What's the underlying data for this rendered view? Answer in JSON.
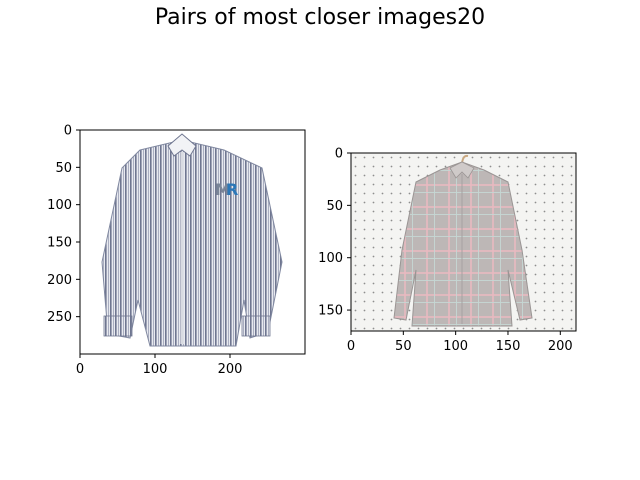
{
  "figure": {
    "title": "Pairs of most closer images20"
  },
  "colors": {
    "background": "#ffffff",
    "axis": "#000000",
    "shirt1_stripe_dark": "#6f7690",
    "shirt1_stripe_light": "#e8eaf0",
    "shirt2_base": "#bdb7b6",
    "shirt2_check": "#e8b9c0",
    "pegboard": "#f4f4f2"
  },
  "chart_data": [
    {
      "type": "image",
      "title": "",
      "xlabel": "",
      "ylabel": "",
      "xlim": [
        0,
        300
      ],
      "ylim": [
        300,
        0
      ],
      "xticks": [
        0,
        100,
        200
      ],
      "yticks": [
        0,
        50,
        100,
        150,
        200,
        250
      ],
      "image_subject": "striped button-down shirt with MR logo"
    },
    {
      "type": "image",
      "title": "",
      "xlabel": "",
      "ylabel": "",
      "xlim": [
        0,
        215
      ],
      "ylim": [
        170,
        0
      ],
      "xticks": [
        0,
        50,
        100,
        150,
        200
      ],
      "yticks": [
        0,
        50,
        100,
        150
      ],
      "image_subject": "grey plaid shirt on hanger against pegboard"
    }
  ]
}
